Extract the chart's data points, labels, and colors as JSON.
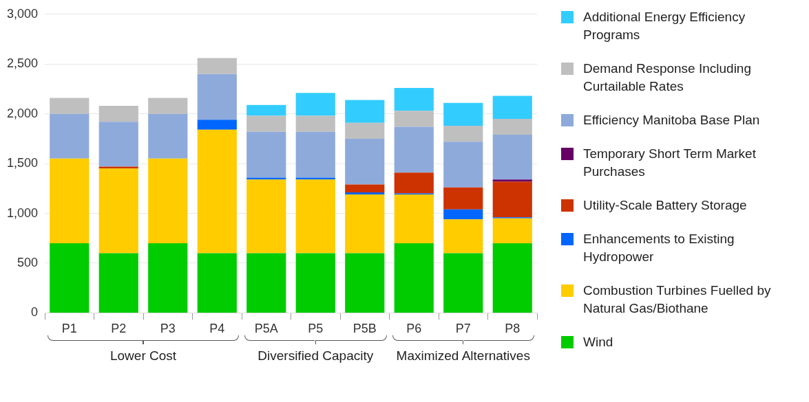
{
  "chart_data": {
    "type": "bar",
    "stacked": true,
    "categories": [
      "P1",
      "P2",
      "P3",
      "P4",
      "P5A",
      "P5",
      "P5B",
      "P6",
      "P7",
      "P8"
    ],
    "ylim": [
      0,
      3000
    ],
    "yticks": [
      {
        "value": 0,
        "label": "0"
      },
      {
        "value": 500,
        "label": "500"
      },
      {
        "value": 1000,
        "label": "1,000"
      },
      {
        "value": 1500,
        "label": "1,500"
      },
      {
        "value": 2000,
        "label": "2,000"
      },
      {
        "value": 2500,
        "label": "2,500"
      },
      {
        "value": 3000,
        "label": "3,000"
      }
    ],
    "grid": "y",
    "legend": "right",
    "annotations": [
      "Lower Cost",
      "Diversified Capacity",
      "Maximized Alternatives"
    ],
    "series": [
      {
        "name": "Wind",
        "color": "#00cc00",
        "values": [
          700,
          600,
          700,
          600,
          600,
          600,
          600,
          700,
          600,
          700
        ]
      },
      {
        "name": "Combustion Turbines Fuelled by Natural Gas/Biothane",
        "color": "#ffcc00",
        "values": [
          850,
          850,
          850,
          1240,
          740,
          740,
          590,
          490,
          340,
          250
        ]
      },
      {
        "name": "Enhancements to Existing Hydropower",
        "color": "#0066ff",
        "values": [
          null,
          null,
          null,
          100,
          20,
          20,
          20,
          10,
          100,
          10
        ]
      },
      {
        "name": "Utility-Scale Battery Storage",
        "color": "#cc3300",
        "values": [
          null,
          20,
          null,
          null,
          null,
          null,
          80,
          210,
          220,
          360
        ]
      },
      {
        "name": "Temporary Short Term Market Purchases",
        "color": "#660066",
        "values": [
          null,
          null,
          null,
          null,
          null,
          null,
          null,
          null,
          null,
          20
        ]
      },
      {
        "name": "Efficiency Manitoba Base Plan",
        "color": "#8eaadb",
        "values": [
          450,
          450,
          450,
          460,
          460,
          460,
          460,
          460,
          460,
          450
        ]
      },
      {
        "name": "Demand Response Including Curtailable Rates",
        "color": "#bfbfbf",
        "values": [
          160,
          160,
          160,
          160,
          160,
          160,
          160,
          160,
          160,
          160
        ]
      },
      {
        "name": "Additional Energy Efficiency Programs",
        "color": "#33ccff",
        "values": [
          null,
          null,
          null,
          null,
          110,
          230,
          230,
          230,
          230,
          230
        ]
      }
    ]
  }
}
